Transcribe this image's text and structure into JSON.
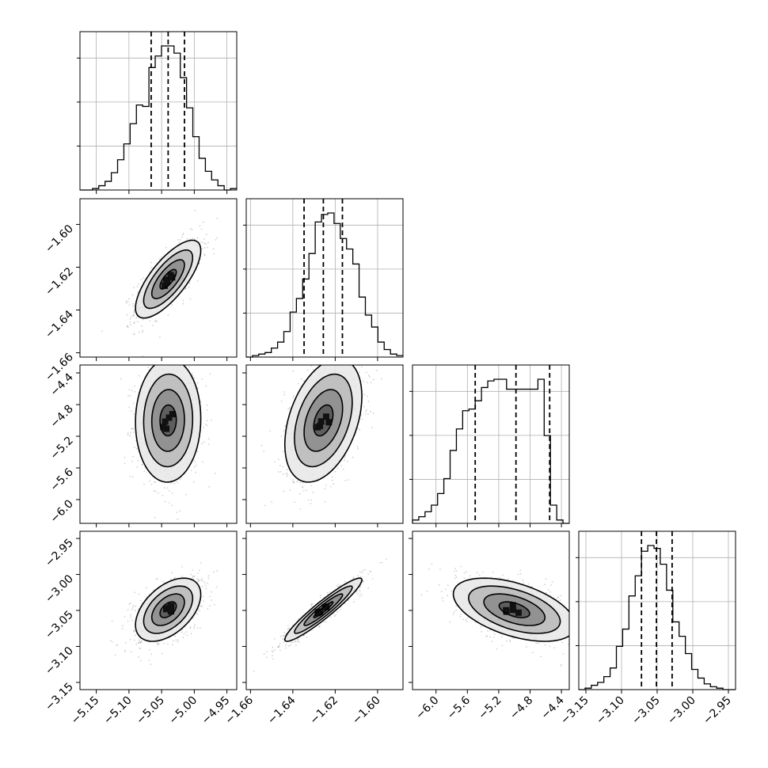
{
  "chart_data": {
    "type": "corner",
    "grid": true,
    "parameters": [
      {
        "name": "",
        "range": [
          -5.175,
          -4.935
        ],
        "ticks": [
          -5.15,
          -5.1,
          -5.05,
          -5.0,
          -4.95
        ],
        "tick_labels": [
          "−5.15",
          "−5.10",
          "−5.05",
          "−5.00",
          "−4.95"
        ],
        "quantiles": [
          -5.066,
          -5.04,
          -5.015
        ],
        "hist_peak": 1.0,
        "hist_values": [
          0.0,
          0.0,
          0.01,
          0.03,
          0.06,
          0.12,
          0.21,
          0.32,
          0.46,
          0.59,
          0.58,
          0.85,
          0.93,
          1.0,
          1.0,
          0.95,
          0.78,
          0.57,
          0.37,
          0.22,
          0.13,
          0.07,
          0.03,
          0.0,
          0.01
        ]
      },
      {
        "name": "",
        "range": [
          -1.662,
          -1.588
        ],
        "ticks": [
          -1.66,
          -1.64,
          -1.62,
          -1.6
        ],
        "tick_labels": [
          "−1.66",
          "−1.64",
          "−1.62",
          "−1.60"
        ],
        "quantiles": [
          -1.6347,
          -1.6256,
          -1.6166
        ],
        "hist_values": [
          0.0,
          0.01,
          0.02,
          0.03,
          0.06,
          0.1,
          0.17,
          0.3,
          0.39,
          0.52,
          0.69,
          0.9,
          0.95,
          0.96,
          0.89,
          0.79,
          0.72,
          0.62,
          0.4,
          0.28,
          0.2,
          0.1,
          0.05,
          0.02,
          0.01
        ]
      },
      {
        "name": "",
        "range": [
          -6.3,
          -4.3
        ],
        "ticks": [
          -6.0,
          -5.6,
          -5.2,
          -4.8,
          -4.4
        ],
        "tick_labels": [
          "−6.0",
          "−5.6",
          "−5.2",
          "−4.8",
          "−4.4"
        ],
        "quantiles": [
          -5.5,
          -4.98,
          -4.55
        ],
        "hist_values": [
          0.02,
          0.04,
          0.07,
          0.11,
          0.18,
          0.27,
          0.44,
          0.57,
          0.68,
          0.69,
          0.74,
          0.82,
          0.86,
          0.87,
          0.87,
          0.81,
          0.81,
          0.81,
          0.81,
          0.81,
          0.87,
          0.53,
          0.11,
          0.02,
          0.0
        ]
      },
      {
        "name": "",
        "range": [
          -3.16,
          -2.94
        ],
        "ticks": [
          -3.15,
          -3.1,
          -3.05,
          -3.0,
          -2.95
        ],
        "tick_labels": [
          "−3.15",
          "−3.10",
          "−3.05",
          "−3.00",
          "−2.95"
        ],
        "quantiles": [
          -3.072,
          -3.051,
          -3.029
        ],
        "hist_values": [
          0.0,
          0.01,
          0.03,
          0.05,
          0.09,
          0.15,
          0.3,
          0.42,
          0.65,
          0.79,
          0.96,
          1.0,
          0.98,
          0.87,
          0.69,
          0.47,
          0.37,
          0.25,
          0.14,
          0.08,
          0.04,
          0.02,
          0.01,
          0.0,
          0.0
        ]
      }
    ],
    "pairs": [
      {
        "x": 0,
        "y": 1,
        "mean": [
          -5.04,
          -1.6256
        ],
        "cov": [
          [
            0.000625,
            0.000168
          ],
          [
            0.000168,
            8.27e-05
          ]
        ]
      },
      {
        "x": 0,
        "y": 2,
        "mean": [
          -5.04,
          -5.0
        ],
        "cov": [
          [
            0.000625,
            0.0003
          ],
          [
            0.0003,
            0.152
          ]
        ]
      },
      {
        "x": 1,
        "y": 2,
        "mean": [
          -1.6256,
          -5.0
        ],
        "cov": [
          [
            8.27e-05,
            0.00138
          ],
          [
            0.00138,
            0.152
          ]
        ]
      },
      {
        "x": 0,
        "y": 3,
        "mean": [
          -5.04,
          -3.049
        ],
        "cov": [
          [
            0.000625,
            0.000264
          ],
          [
            0.000264,
            0.000482
          ]
        ]
      },
      {
        "x": 1,
        "y": 3,
        "mean": [
          -1.6256,
          -3.049
        ],
        "cov": [
          [
            8.27e-05,
            0.000188
          ],
          [
            0.000188,
            0.000482
          ]
        ]
      },
      {
        "x": 2,
        "y": 3,
        "mean": [
          -5.0,
          -3.049
        ],
        "cov": [
          [
            0.152,
            -0.00425
          ],
          [
            -0.00425,
            0.000482
          ]
        ]
      }
    ],
    "contour_levels_sigma": [
      0.5,
      1.0,
      1.5,
      2.0
    ]
  }
}
